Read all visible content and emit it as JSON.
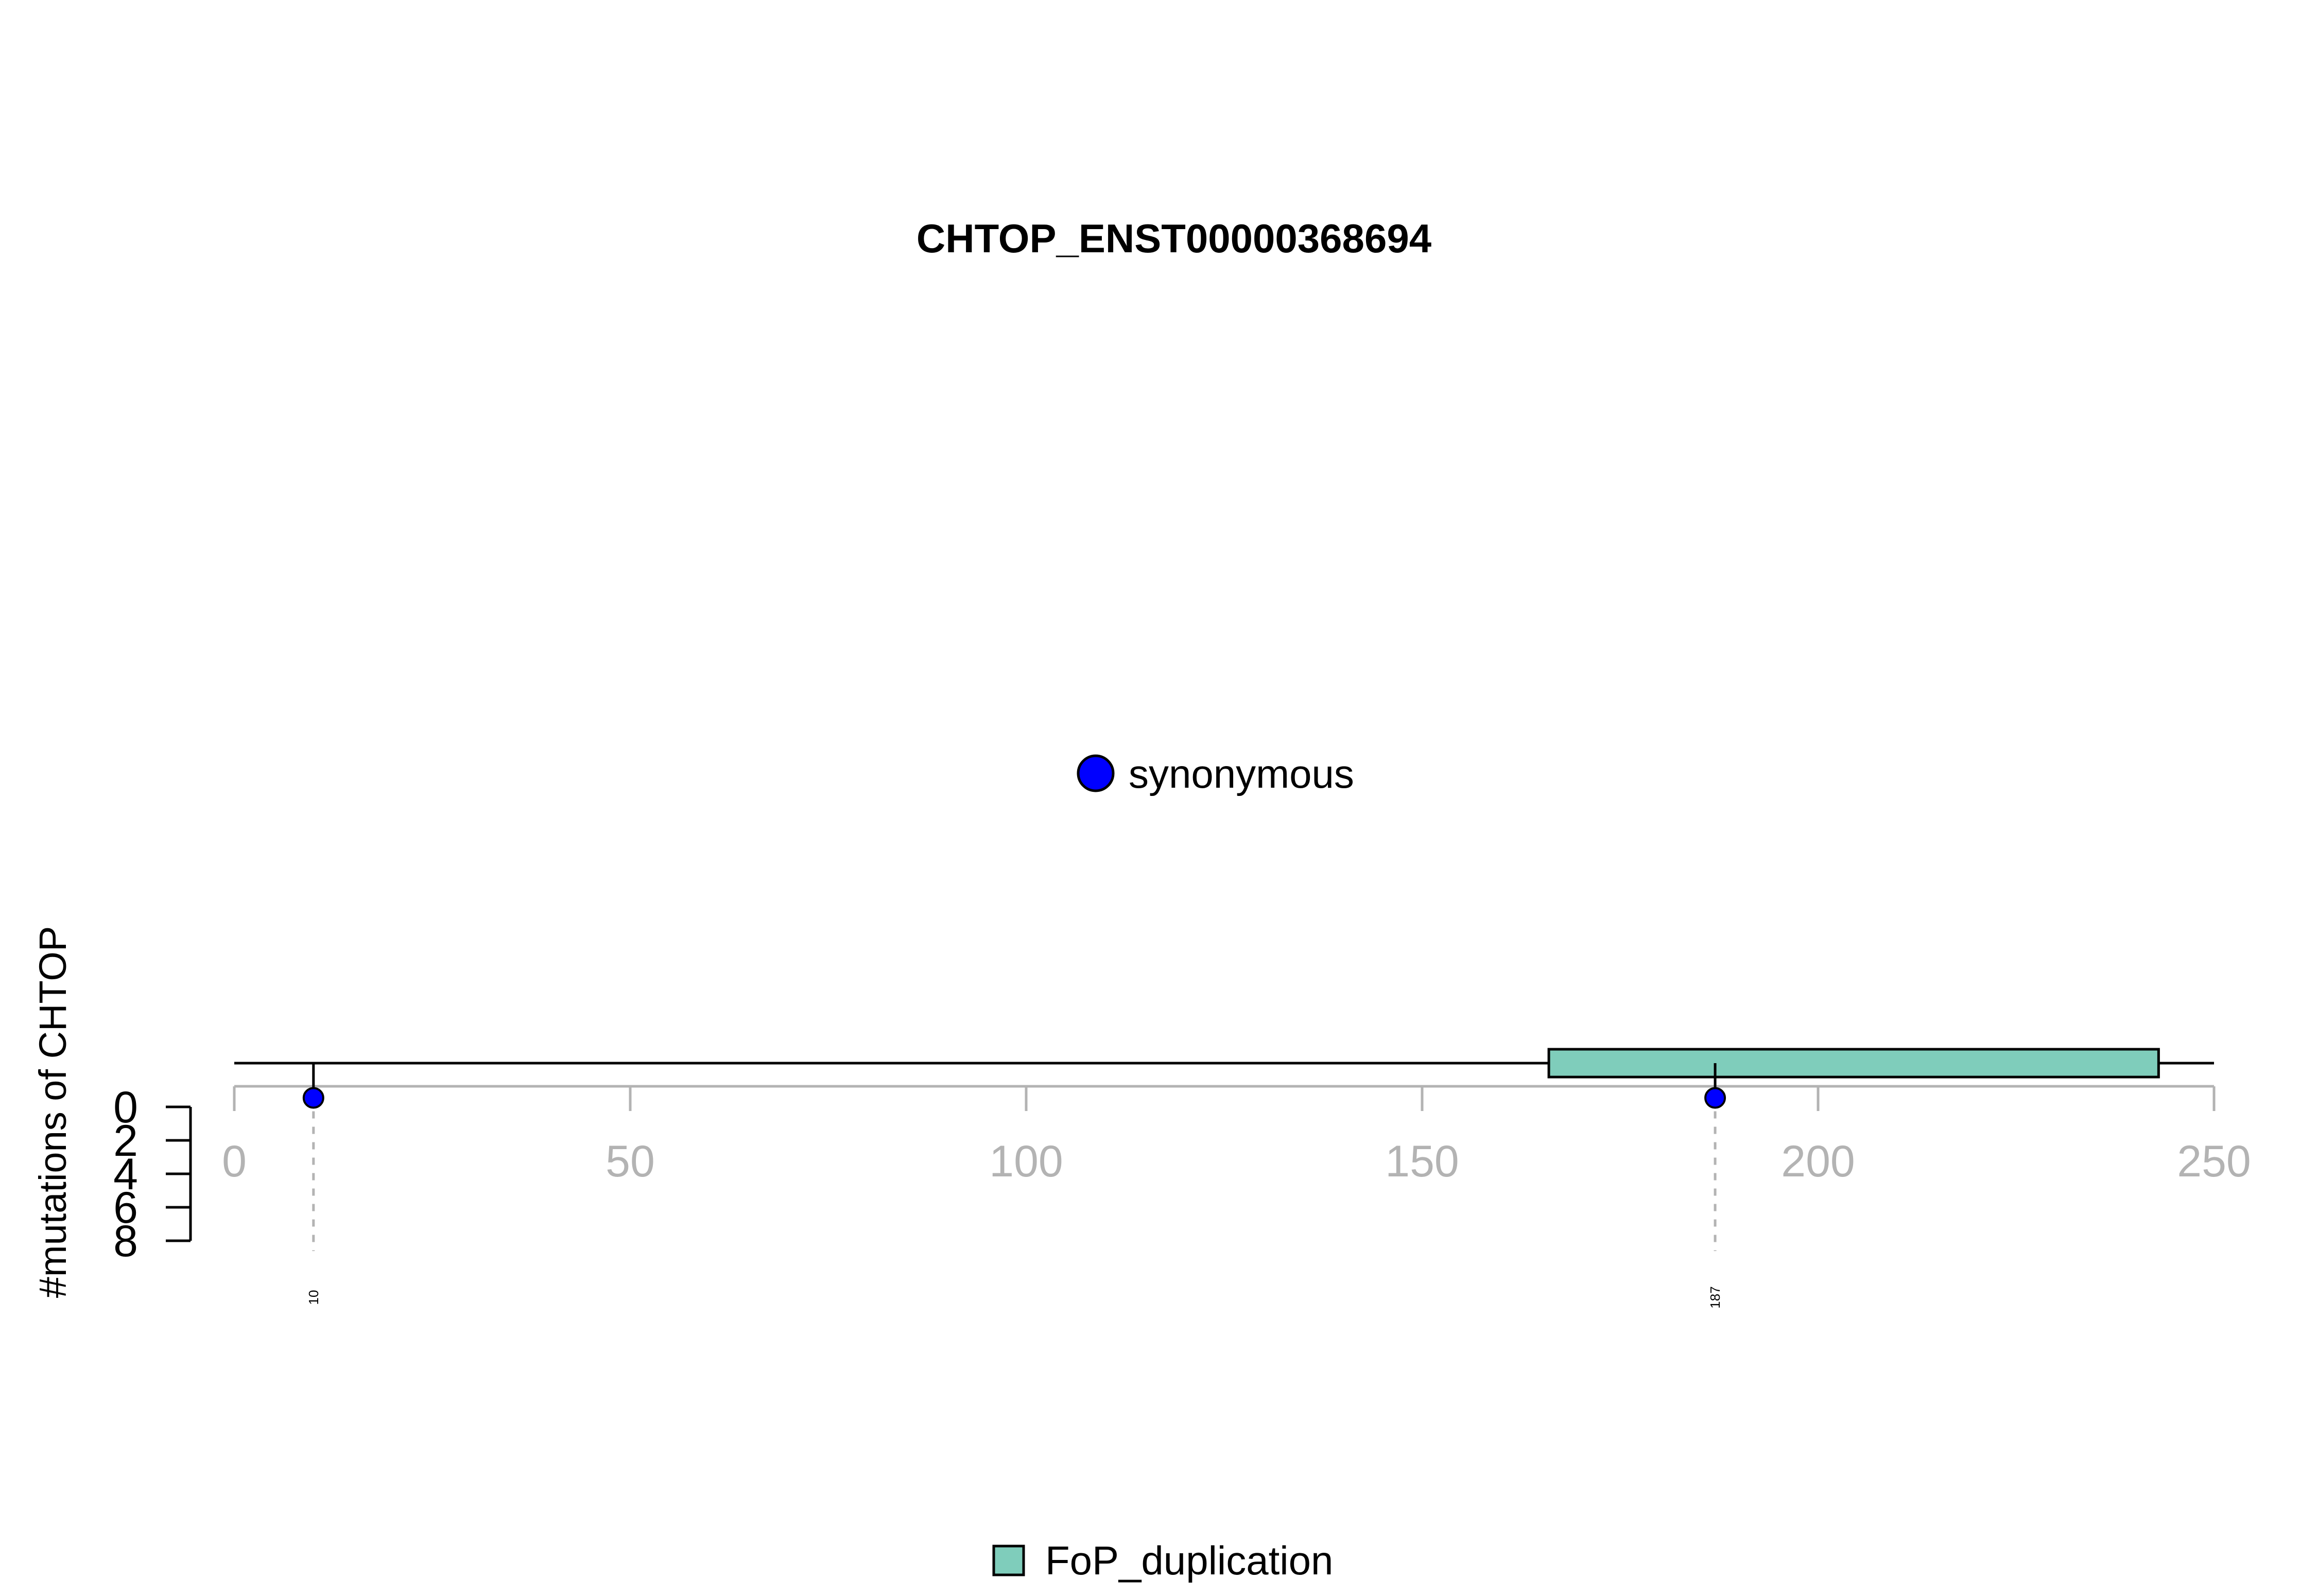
{
  "chart_data": {
    "type": "lollipop",
    "title": "CHTOP_ENST00000368694",
    "xlabel": "",
    "ylabel": "#mutations of CHTOP",
    "xlim": [
      0,
      250
    ],
    "x_ticks": [
      0,
      50,
      100,
      150,
      200,
      250
    ],
    "x_tick_labels": [
      "0",
      "50",
      "100",
      "150",
      "200",
      "250"
    ],
    "ylim": [
      0,
      8
    ],
    "y_ticks": [
      0,
      2,
      4,
      6,
      8
    ],
    "y_tick_labels": [
      "0",
      "2",
      "4",
      "6",
      "8"
    ],
    "protein_length": 250,
    "domains": [
      {
        "name": "FoP_duplication",
        "start": 166,
        "end": 243,
        "color": "#7FCDBB"
      }
    ],
    "mutations": [
      {
        "position": 10,
        "label": "10",
        "count": 1,
        "type": "synonymous"
      },
      {
        "position": 187,
        "label": "187",
        "count": 1,
        "type": "synonymous"
      }
    ],
    "mutation_legend": [
      {
        "label": "synonymous",
        "color": "#0000FF"
      }
    ],
    "domain_legend": [
      {
        "label": "FoP_duplication",
        "color": "#7FCDBB"
      }
    ],
    "axis_color": "#B3B3B3",
    "grid": false
  }
}
